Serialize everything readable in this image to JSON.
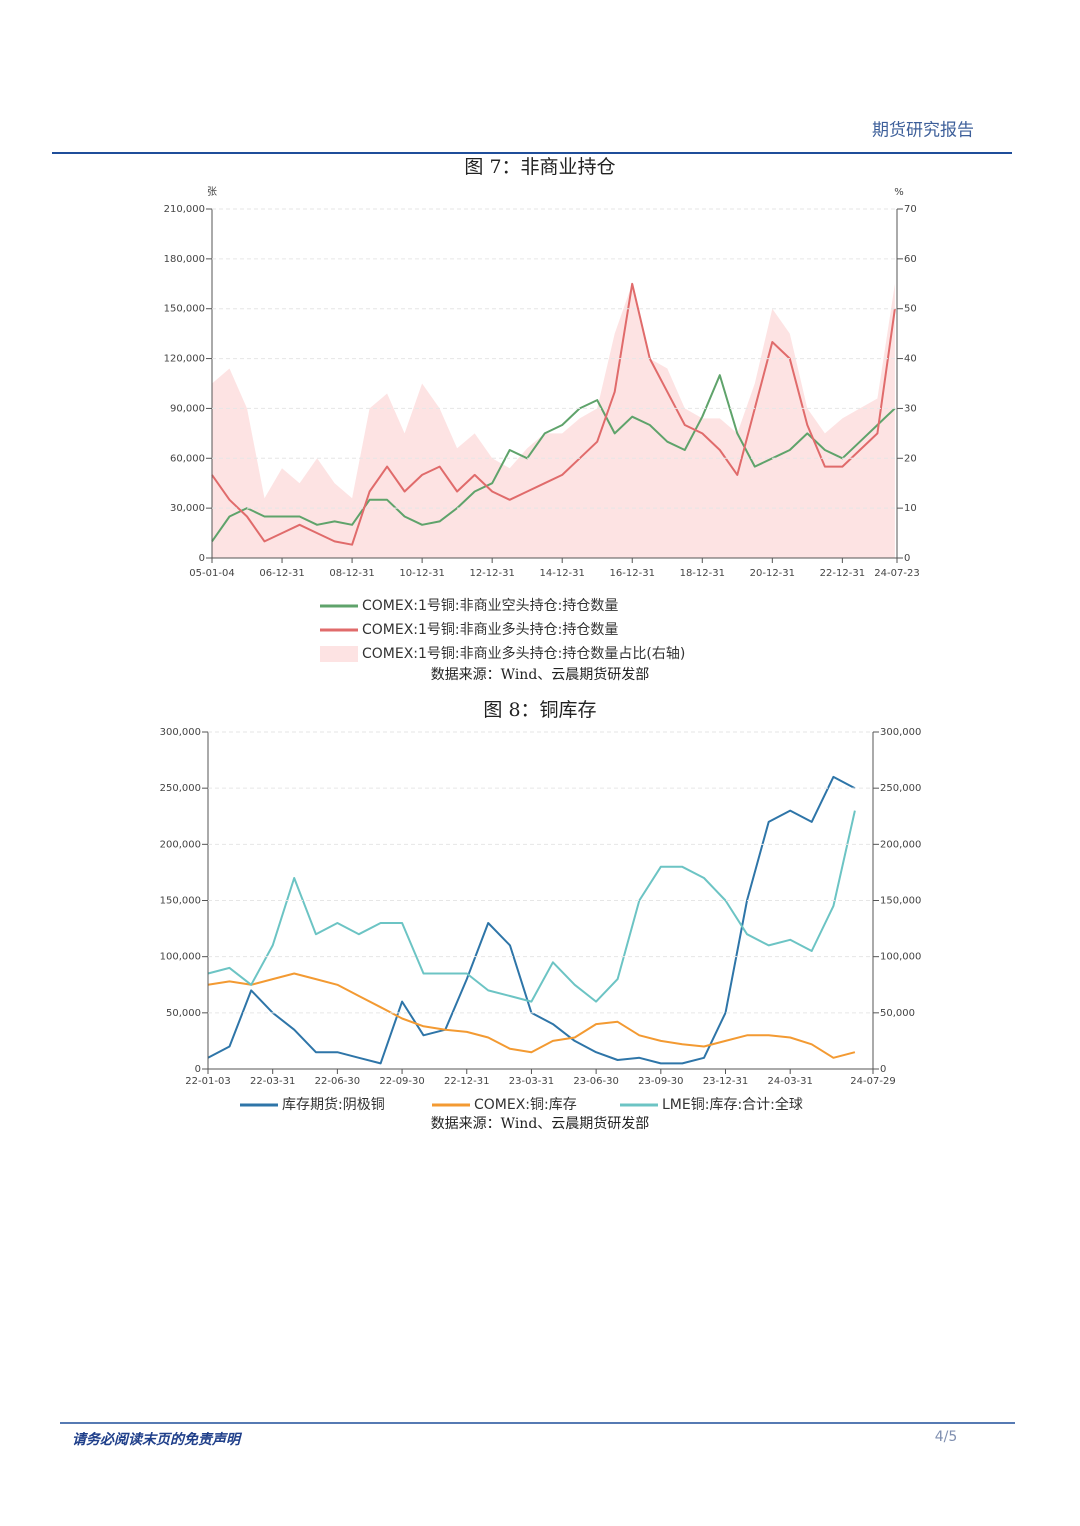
{
  "header": {
    "title": "期货研究报告"
  },
  "footer": {
    "disclaimer": "请务必阅读末页的免责声明",
    "page": "4/5"
  },
  "chart_data": [
    {
      "type": "line",
      "title": "图 7：非商业持仓",
      "source": "数据来源：Wind、云晨期货研发部",
      "y_label": "张",
      "y2_label": "%",
      "grid": true,
      "legend": "bottom",
      "x": [
        2005,
        2005.5,
        2006,
        2006.5,
        2007,
        2007.5,
        2008,
        2008.5,
        2009,
        2009.5,
        2010,
        2010.5,
        2011,
        2011.5,
        2012,
        2012.5,
        2013,
        2013.5,
        2014,
        2014.5,
        2015,
        2015.5,
        2016,
        2016.5,
        2017,
        2017.5,
        2018,
        2018.5,
        2019,
        2019.5,
        2020,
        2020.5,
        2021,
        2021.5,
        2022,
        2022.5,
        2023,
        2023.5,
        2024,
        2024.5
      ],
      "xlim": [
        2005,
        2024.56
      ],
      "xticks": [
        {
          "value": 2005,
          "label": "05-01-04"
        },
        {
          "value": 2007,
          "label": "06-12-31"
        },
        {
          "value": 2009,
          "label": "08-12-31"
        },
        {
          "value": 2011,
          "label": "10-12-31"
        },
        {
          "value": 2013,
          "label": "12-12-31"
        },
        {
          "value": 2015,
          "label": "14-12-31"
        },
        {
          "value": 2017,
          "label": "16-12-31"
        },
        {
          "value": 2019,
          "label": "18-12-31"
        },
        {
          "value": 2021,
          "label": "20-12-31"
        },
        {
          "value": 2023,
          "label": "22-12-31"
        },
        {
          "value": 2024.56,
          "label": "24-07-23"
        }
      ],
      "ylim": [
        0,
        210000
      ],
      "yticks": [
        0,
        {
          "value": 30000,
          "label": "30,000"
        },
        {
          "value": 60000,
          "label": "60,000"
        },
        {
          "value": 90000,
          "label": "90,000"
        },
        {
          "value": 120000,
          "label": "120,000"
        },
        {
          "value": 150000,
          "label": "150,000"
        },
        {
          "value": 180000,
          "label": "180,000"
        },
        {
          "value": 210000,
          "label": "210,000"
        }
      ],
      "y2lim": [
        0,
        70
      ],
      "y2ticks": [
        0,
        10,
        20,
        30,
        40,
        50,
        60,
        70
      ],
      "series": [
        {
          "name": "COMEX:1号铜:非商业空头持仓:持仓数量",
          "color": "#5fa36b",
          "values": [
            10000,
            25000,
            30000,
            25000,
            25000,
            25000,
            20000,
            22000,
            20000,
            35000,
            35000,
            25000,
            20000,
            22000,
            30000,
            40000,
            45000,
            65000,
            60000,
            75000,
            80000,
            90000,
            95000,
            75000,
            85000,
            80000,
            70000,
            65000,
            85000,
            110000,
            75000,
            55000,
            60000,
            65000,
            75000,
            65000,
            60000,
            70000,
            80000,
            90000
          ]
        },
        {
          "name": "COMEX:1号铜:非商业多头持仓:持仓数量",
          "color": "#e06b6b",
          "values": [
            50000,
            35000,
            25000,
            10000,
            15000,
            20000,
            15000,
            10000,
            8000,
            40000,
            55000,
            40000,
            50000,
            55000,
            40000,
            50000,
            40000,
            35000,
            40000,
            45000,
            50000,
            60000,
            70000,
            100000,
            165000,
            120000,
            100000,
            80000,
            75000,
            65000,
            50000,
            90000,
            130000,
            120000,
            80000,
            55000,
            55000,
            65000,
            75000,
            150000
          ]
        },
        {
          "name": "COMEX:1号铜:非商业多头持仓:持仓数量占比(右轴)",
          "color": "#fde3e3",
          "kind": "area",
          "axis": "y2",
          "values": [
            35,
            38,
            30,
            12,
            18,
            15,
            20,
            15,
            12,
            30,
            33,
            25,
            35,
            30,
            22,
            25,
            20,
            18,
            22,
            25,
            25,
            28,
            30,
            45,
            55,
            40,
            38,
            30,
            28,
            28,
            25,
            35,
            50,
            45,
            30,
            25,
            28,
            30,
            32,
            55
          ]
        }
      ]
    },
    {
      "type": "line",
      "title": "图 8：铜库存",
      "source": "数据来源：Wind、云晨期货研发部",
      "grid": true,
      "legend": "bottom",
      "x": [
        2022,
        2022.083,
        2022.167,
        2022.25,
        2022.333,
        2022.417,
        2022.5,
        2022.583,
        2022.667,
        2022.75,
        2022.833,
        2022.917,
        2023,
        2023.083,
        2023.167,
        2023.25,
        2023.333,
        2023.417,
        2023.5,
        2023.583,
        2023.667,
        2023.75,
        2023.833,
        2023.917,
        2024,
        2024.083,
        2024.167,
        2024.25,
        2024.333,
        2024.417,
        2024.5
      ],
      "xlim": [
        2022,
        2024.57
      ],
      "xticks": [
        {
          "value": 2022,
          "label": "22-01-03"
        },
        {
          "value": 2022.25,
          "label": "22-03-31"
        },
        {
          "value": 2022.5,
          "label": "22-06-30"
        },
        {
          "value": 2022.75,
          "label": "22-09-30"
        },
        {
          "value": 2023,
          "label": "22-12-31"
        },
        {
          "value": 2023.25,
          "label": "23-03-31"
        },
        {
          "value": 2023.5,
          "label": "23-06-30"
        },
        {
          "value": 2023.75,
          "label": "23-09-30"
        },
        {
          "value": 2024,
          "label": "23-12-31"
        },
        {
          "value": 2024.25,
          "label": "24-03-31"
        },
        {
          "value": 2024.57,
          "label": "24-07-29"
        }
      ],
      "ylim": [
        0,
        300000
      ],
      "yticks": [
        0,
        {
          "value": 50000,
          "label": "50,000"
        },
        {
          "value": 100000,
          "label": "100,000"
        },
        {
          "value": 150000,
          "label": "150,000"
        },
        {
          "value": 200000,
          "label": "200,000"
        },
        {
          "value": 250000,
          "label": "250,000"
        },
        {
          "value": 300000,
          "label": "300,000"
        }
      ],
      "y2lim": [
        0,
        300000
      ],
      "y2ticks": [
        0,
        {
          "value": 50000,
          "label": "50,000"
        },
        {
          "value": 100000,
          "label": "100,000"
        },
        {
          "value": 150000,
          "label": "150,000"
        },
        {
          "value": 200000,
          "label": "200,000"
        },
        {
          "value": 250000,
          "label": "250,000"
        },
        {
          "value": 300000,
          "label": "300,000"
        }
      ],
      "series": [
        {
          "name": "库存期货:阴极铜",
          "color": "#2e75a8",
          "values": [
            10000,
            20000,
            70000,
            50000,
            35000,
            15000,
            15000,
            10000,
            5000,
            60000,
            30000,
            35000,
            80000,
            130000,
            110000,
            50000,
            40000,
            25000,
            15000,
            8000,
            10000,
            5000,
            5000,
            10000,
            50000,
            150000,
            220000,
            230000,
            220000,
            260000,
            250000
          ]
        },
        {
          "name": "COMEX:铜:库存",
          "color": "#f39a32",
          "values": [
            75000,
            78000,
            75000,
            80000,
            85000,
            80000,
            75000,
            65000,
            55000,
            45000,
            38000,
            35000,
            33000,
            28000,
            18000,
            15000,
            25000,
            28000,
            40000,
            42000,
            30000,
            25000,
            22000,
            20000,
            25000,
            30000,
            30000,
            28000,
            22000,
            10000,
            15000
          ]
        },
        {
          "name": "LME铜:库存:合计:全球",
          "color": "#6cc4c4",
          "values": [
            85000,
            90000,
            75000,
            110000,
            170000,
            120000,
            130000,
            120000,
            130000,
            130000,
            85000,
            85000,
            85000,
            70000,
            65000,
            60000,
            95000,
            75000,
            60000,
            80000,
            150000,
            180000,
            180000,
            170000,
            150000,
            120000,
            110000,
            115000,
            105000,
            145000,
            230000
          ]
        }
      ]
    }
  ]
}
